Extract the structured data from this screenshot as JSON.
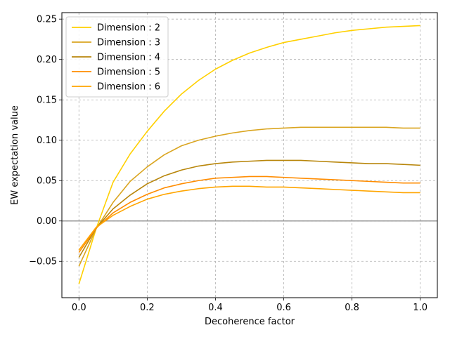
{
  "chart_data": {
    "type": "line",
    "title": "",
    "xlabel": "Decoherence factor",
    "ylabel": "EW expectation value",
    "xlim": [
      -0.05,
      1.05
    ],
    "ylim": [
      -0.095,
      0.258
    ],
    "xticks": [
      0.0,
      0.2,
      0.4,
      0.6,
      0.8,
      1.0
    ],
    "xtick_labels": [
      "0.0",
      "0.2",
      "0.4",
      "0.6",
      "0.8",
      "1.0"
    ],
    "yticks": [
      -0.05,
      0.0,
      0.05,
      0.1,
      0.15,
      0.2,
      0.25
    ],
    "ytick_labels": [
      "−0.05",
      "0.00",
      "0.05",
      "0.10",
      "0.15",
      "0.20",
      "0.25"
    ],
    "grid": true,
    "legend_position": "top-left",
    "zero_line_color": "#808080",
    "series": [
      {
        "name": "Dimension : 2",
        "color": "#ffd000",
        "x": [
          0.0,
          0.05,
          0.1,
          0.15,
          0.2,
          0.25,
          0.3,
          0.35,
          0.4,
          0.45,
          0.5,
          0.55,
          0.6,
          0.65,
          0.7,
          0.75,
          0.8,
          0.85,
          0.9,
          0.95,
          1.0
        ],
        "y": [
          -0.078,
          -0.01,
          0.048,
          0.083,
          0.111,
          0.136,
          0.157,
          0.174,
          0.188,
          0.199,
          0.208,
          0.215,
          0.221,
          0.225,
          0.229,
          0.233,
          0.236,
          0.238,
          0.24,
          0.241,
          0.242
        ]
      },
      {
        "name": "Dimension : 3",
        "color": "#daa520",
        "x": [
          0.0,
          0.05,
          0.1,
          0.15,
          0.2,
          0.25,
          0.3,
          0.35,
          0.4,
          0.45,
          0.5,
          0.55,
          0.6,
          0.65,
          0.7,
          0.75,
          0.8,
          0.85,
          0.9,
          0.95,
          1.0
        ],
        "y": [
          -0.056,
          -0.01,
          0.023,
          0.049,
          0.067,
          0.082,
          0.093,
          0.1,
          0.105,
          0.109,
          0.112,
          0.114,
          0.115,
          0.116,
          0.116,
          0.116,
          0.116,
          0.116,
          0.116,
          0.115,
          0.115
        ]
      },
      {
        "name": "Dimension : 4",
        "color": "#b8860b",
        "x": [
          0.0,
          0.05,
          0.1,
          0.15,
          0.2,
          0.25,
          0.3,
          0.35,
          0.4,
          0.45,
          0.5,
          0.55,
          0.6,
          0.65,
          0.7,
          0.75,
          0.8,
          0.85,
          0.9,
          0.95,
          1.0
        ],
        "y": [
          -0.045,
          -0.009,
          0.015,
          0.032,
          0.046,
          0.056,
          0.063,
          0.068,
          0.071,
          0.073,
          0.074,
          0.075,
          0.075,
          0.075,
          0.074,
          0.073,
          0.072,
          0.071,
          0.071,
          0.07,
          0.069
        ]
      },
      {
        "name": "Dimension : 5",
        "color": "#ff8c00",
        "x": [
          0.0,
          0.05,
          0.1,
          0.15,
          0.2,
          0.25,
          0.3,
          0.35,
          0.4,
          0.45,
          0.5,
          0.55,
          0.6,
          0.65,
          0.7,
          0.75,
          0.8,
          0.85,
          0.9,
          0.95,
          1.0
        ],
        "y": [
          -0.039,
          -0.009,
          0.01,
          0.023,
          0.033,
          0.041,
          0.046,
          0.05,
          0.053,
          0.054,
          0.055,
          0.055,
          0.054,
          0.053,
          0.052,
          0.051,
          0.05,
          0.049,
          0.048,
          0.047,
          0.047
        ]
      },
      {
        "name": "Dimension : 6",
        "color": "#ffa500",
        "x": [
          0.0,
          0.05,
          0.1,
          0.15,
          0.2,
          0.25,
          0.3,
          0.35,
          0.4,
          0.45,
          0.5,
          0.55,
          0.6,
          0.65,
          0.7,
          0.75,
          0.8,
          0.85,
          0.9,
          0.95,
          1.0
        ],
        "y": [
          -0.036,
          -0.008,
          0.007,
          0.018,
          0.027,
          0.033,
          0.037,
          0.04,
          0.042,
          0.043,
          0.043,
          0.042,
          0.042,
          0.041,
          0.04,
          0.039,
          0.038,
          0.037,
          0.036,
          0.035,
          0.035
        ]
      }
    ]
  }
}
